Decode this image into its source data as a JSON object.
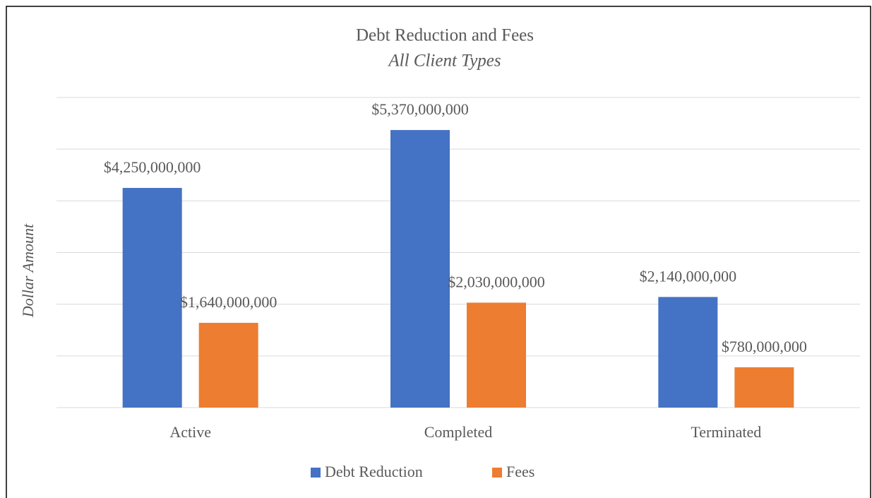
{
  "chart_data": {
    "type": "bar",
    "title": "Debt Reduction and Fees",
    "subtitle": "All Client Types",
    "y_label": "Dollar Amount",
    "categories": [
      "Active",
      "Completed",
      "Terminated"
    ],
    "series": [
      {
        "name": "Debt Reduction",
        "color": "#4472c4",
        "values": [
          4250000000,
          5370000000,
          2140000000
        ],
        "value_labels": [
          "$4,250,000,000",
          "$5,370,000,000",
          "$2,140,000,000"
        ]
      },
      {
        "name": "Fees",
        "color": "#ed7d31",
        "values": [
          1640000000,
          2030000000,
          780000000
        ],
        "value_labels": [
          "$1,640,000,000",
          "$2,030,000,000",
          "$780,000,000"
        ]
      }
    ],
    "ylim": [
      0,
      6000000000
    ],
    "yticks": [
      0,
      1000000000,
      2000000000,
      3000000000,
      4000000000,
      5000000000,
      6000000000
    ],
    "grid": true,
    "legend": "bottom"
  }
}
